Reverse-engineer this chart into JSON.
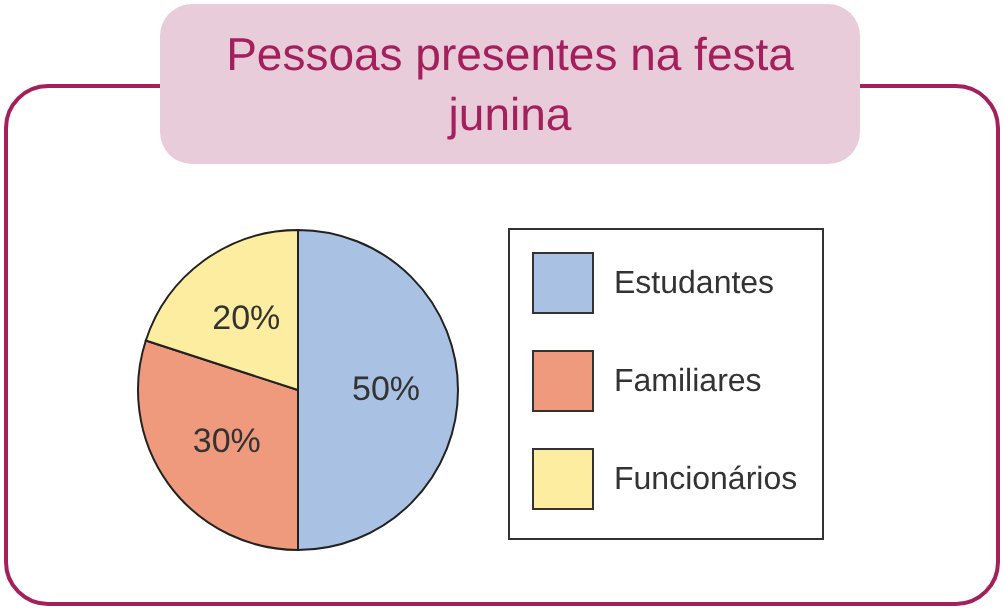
{
  "chart_data": {
    "type": "pie",
    "title": "Pessoas presentes na festa junina",
    "categories": [
      "Estudantes",
      "Familiares",
      "Funcionários"
    ],
    "values": [
      50,
      30,
      20
    ],
    "colors": [
      "#a9c1e2",
      "#ef9a7d",
      "#fdeda0"
    ],
    "value_labels": [
      "50%",
      "30%",
      "20%"
    ],
    "legend": "right"
  }
}
